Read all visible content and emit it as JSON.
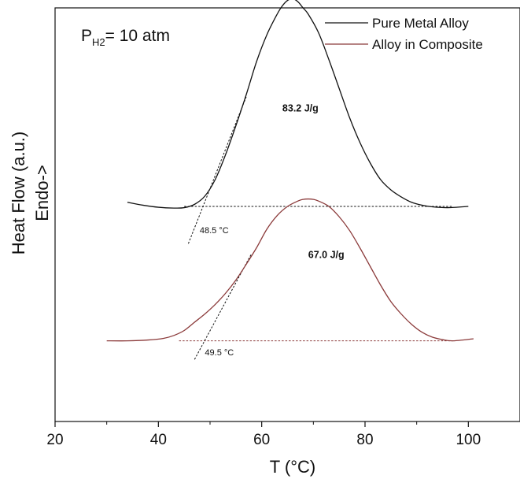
{
  "chart_data": {
    "type": "line",
    "xlabel": "T (°C)",
    "ylabel_line1": "Heat Flow (a.u.)",
    "ylabel_line2": "Endo->",
    "xlim": [
      20,
      110
    ],
    "ylim": [
      0,
      10
    ],
    "xticks": [
      20,
      40,
      60,
      80,
      100
    ],
    "grid": false,
    "legend": "top-right",
    "condition": {
      "main": "P",
      "sub": "H2",
      "rest": "= 10 atm"
    },
    "colors": {
      "pure": "#111111",
      "composite": "#8b3a3a",
      "axes": "#111111"
    },
    "series": [
      {
        "name": "Pure Metal Alloy",
        "color": "#111111",
        "x": [
          34,
          37,
          40,
          43,
          45,
          47,
          49,
          51,
          53,
          55,
          57,
          59,
          61,
          63,
          64,
          65,
          66,
          67,
          68,
          69,
          71,
          73,
          75,
          77,
          79,
          81,
          83,
          85,
          87,
          89,
          91,
          93,
          96,
          100
        ],
        "y": [
          5.3,
          5.23,
          5.18,
          5.16,
          5.17,
          5.25,
          5.45,
          5.85,
          6.45,
          7.15,
          7.9,
          8.7,
          9.35,
          9.85,
          10.05,
          10.18,
          10.22,
          10.15,
          10.0,
          9.85,
          9.4,
          8.75,
          8.05,
          7.35,
          6.75,
          6.25,
          5.85,
          5.6,
          5.43,
          5.3,
          5.23,
          5.19,
          5.17,
          5.2
        ],
        "baseline": {
          "x": [
            45,
            97
          ],
          "y": [
            5.2,
            5.2
          ]
        },
        "onset_tangent": {
          "x": [
            45.8,
            57
          ],
          "y": [
            4.3,
            7.85
          ]
        },
        "peak_label": "83.2 J/g",
        "onset_label": "48.5 °C"
      },
      {
        "name": "Alloy in Composite",
        "color": "#8b3a3a",
        "x": [
          30,
          34,
          38,
          41,
          43,
          45,
          47,
          49,
          51,
          53,
          55,
          57,
          59,
          61,
          63,
          65,
          67,
          68,
          69,
          70,
          71,
          73,
          75,
          77,
          79,
          81,
          83,
          85,
          87,
          89,
          91,
          93,
          95,
          97,
          101
        ],
        "y": [
          1.95,
          1.95,
          1.97,
          2.01,
          2.08,
          2.2,
          2.4,
          2.6,
          2.83,
          3.1,
          3.42,
          3.8,
          4.2,
          4.65,
          4.98,
          5.2,
          5.33,
          5.37,
          5.38,
          5.37,
          5.33,
          5.2,
          4.95,
          4.62,
          4.2,
          3.75,
          3.3,
          2.9,
          2.6,
          2.35,
          2.16,
          2.04,
          1.98,
          1.95,
          2.0
        ],
        "baseline": {
          "x": [
            44,
            97
          ],
          "y": [
            1.95,
            1.95
          ]
        },
        "onset_tangent": {
          "x": [
            47,
            58
          ],
          "y": [
            1.5,
            4.05
          ]
        },
        "peak_label": "67.0 J/g",
        "onset_label": "49.5 °C"
      }
    ],
    "annotations": [
      {
        "text": "83.2 J/g",
        "x": 64,
        "y": 7.5,
        "bold": true
      },
      {
        "text": "48.5 °C",
        "x": 48,
        "y": 4.55,
        "bold": false
      },
      {
        "text": "67.0 J/g",
        "x": 69,
        "y": 3.95,
        "bold": true
      },
      {
        "text": "49.5 °C",
        "x": 49,
        "y": 1.6,
        "bold": false
      }
    ]
  }
}
